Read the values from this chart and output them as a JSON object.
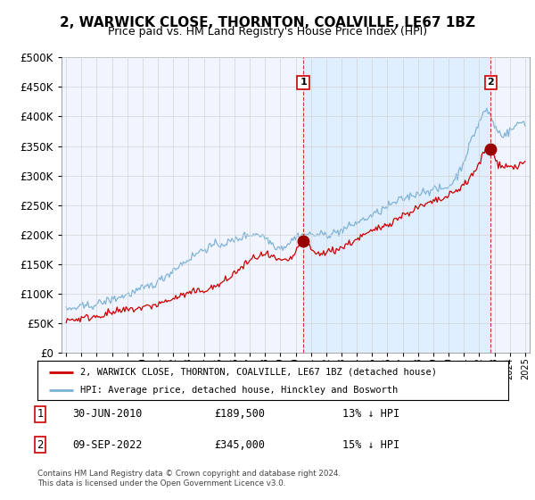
{
  "title": "2, WARWICK CLOSE, THORNTON, COALVILLE, LE67 1BZ",
  "subtitle": "Price paid vs. HM Land Registry's House Price Index (HPI)",
  "legend_property": "2, WARWICK CLOSE, THORNTON, COALVILLE, LE67 1BZ (detached house)",
  "legend_hpi": "HPI: Average price, detached house, Hinckley and Bosworth",
  "sale1_date": "30-JUN-2010",
  "sale1_price": 189500,
  "sale1_note": "13% ↓ HPI",
  "sale1_year": 2010.5,
  "sale2_date": "09-SEP-2022",
  "sale2_price": 345000,
  "sale2_note": "15% ↓ HPI",
  "sale2_year": 2022.75,
  "footer": "Contains HM Land Registry data © Crown copyright and database right 2024.\nThis data is licensed under the Open Government Licence v3.0.",
  "property_color": "#cc0000",
  "hpi_color": "#7ab0d4",
  "shade_color": "#ddeeff",
  "marker_color": "#990000",
  "ylim": [
    0,
    500000
  ],
  "ytick_step": 50000,
  "x_start_year": 1995,
  "x_end_year": 2025,
  "background_color": "#f0f5ff"
}
